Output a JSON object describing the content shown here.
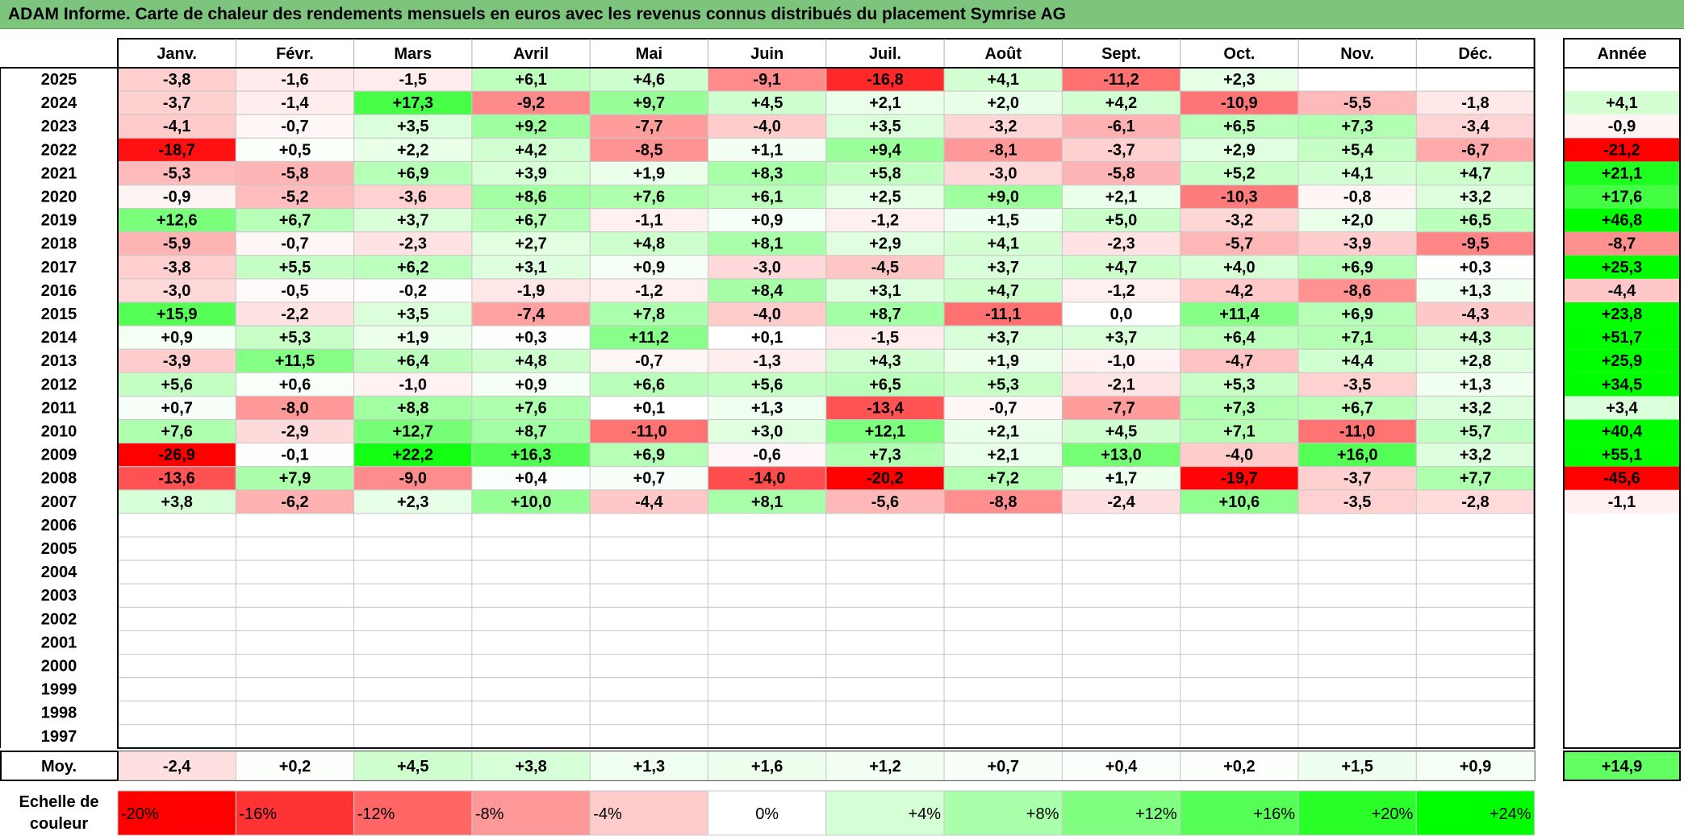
{
  "title": "ADAM Informe. Carte de chaleur des rendements mensuels en euros avec les revenus connus distribués du placement Symrise AG",
  "chart_data": {
    "type": "heatmap",
    "months": [
      "Janv.",
      "Févr.",
      "Mars",
      "Avril",
      "Mai",
      "Juin",
      "Juil.",
      "Août",
      "Sept.",
      "Oct.",
      "Nov.",
      "Déc."
    ],
    "year_header": "Année",
    "years": [
      "2025",
      "2024",
      "2023",
      "2022",
      "2021",
      "2020",
      "2019",
      "2018",
      "2017",
      "2016",
      "2015",
      "2014",
      "2013",
      "2012",
      "2011",
      "2010",
      "2009",
      "2008",
      "2007",
      "2006",
      "2005",
      "2004",
      "2003",
      "2002",
      "2001",
      "2000",
      "1999",
      "1998",
      "1997"
    ],
    "values": [
      [
        "-3,8",
        "-1,6",
        "-1,5",
        "+6,1",
        "+4,6",
        "-9,1",
        "-16,8",
        "+4,1",
        "-11,2",
        "+2,3",
        "",
        ""
      ],
      [
        "-3,7",
        "-1,4",
        "+17,3",
        "-9,2",
        "+9,7",
        "+4,5",
        "+2,1",
        "+2,0",
        "+4,2",
        "-10,9",
        "-5,5",
        "-1,8"
      ],
      [
        "-4,1",
        "-0,7",
        "+3,5",
        "+9,2",
        "-7,7",
        "-4,0",
        "+3,5",
        "-3,2",
        "-6,1",
        "+6,5",
        "+7,3",
        "-3,4"
      ],
      [
        "-18,7",
        "+0,5",
        "+2,2",
        "+4,2",
        "-8,5",
        "+1,1",
        "+9,4",
        "-8,1",
        "-3,7",
        "+2,9",
        "+5,4",
        "-6,7"
      ],
      [
        "-5,3",
        "-5,8",
        "+6,9",
        "+3,9",
        "+1,9",
        "+8,3",
        "+5,8",
        "-3,0",
        "-5,8",
        "+5,2",
        "+4,1",
        "+4,7"
      ],
      [
        "-0,9",
        "-5,2",
        "-3,6",
        "+8,6",
        "+7,6",
        "+6,1",
        "+2,5",
        "+9,0",
        "+2,1",
        "-10,3",
        "-0,8",
        "+3,2"
      ],
      [
        "+12,6",
        "+6,7",
        "+3,7",
        "+6,7",
        "-1,1",
        "+0,9",
        "-1,2",
        "+1,5",
        "+5,0",
        "-3,2",
        "+2,0",
        "+6,5"
      ],
      [
        "-5,9",
        "-0,7",
        "-2,3",
        "+2,7",
        "+4,8",
        "+8,1",
        "+2,9",
        "+4,1",
        "-2,3",
        "-5,7",
        "-3,9",
        "-9,5"
      ],
      [
        "-3,8",
        "+5,5",
        "+6,2",
        "+3,1",
        "+0,9",
        "-3,0",
        "-4,5",
        "+3,7",
        "+4,7",
        "+4,0",
        "+6,9",
        "+0,3"
      ],
      [
        "-3,0",
        "-0,5",
        "-0,2",
        "-1,9",
        "-1,2",
        "+8,4",
        "+3,1",
        "+4,7",
        "-1,2",
        "-4,2",
        "-8,6",
        "+1,3"
      ],
      [
        "+15,9",
        "-2,2",
        "+3,5",
        "-7,4",
        "+7,8",
        "-4,0",
        "+8,7",
        "-11,1",
        "0,0",
        "+11,4",
        "+6,9",
        "-4,3"
      ],
      [
        "+0,9",
        "+5,3",
        "+1,9",
        "+0,3",
        "+11,2",
        "+0,1",
        "-1,5",
        "+3,7",
        "+3,7",
        "+6,4",
        "+7,1",
        "+4,3"
      ],
      [
        "-3,9",
        "+11,5",
        "+6,4",
        "+4,8",
        "-0,7",
        "-1,3",
        "+4,3",
        "+1,9",
        "-1,0",
        "-4,7",
        "+4,4",
        "+2,8"
      ],
      [
        "+5,6",
        "+0,6",
        "-1,0",
        "+0,9",
        "+6,6",
        "+5,6",
        "+6,5",
        "+5,3",
        "-2,1",
        "+5,3",
        "-3,5",
        "+1,3"
      ],
      [
        "+0,7",
        "-8,0",
        "+8,8",
        "+7,6",
        "+0,1",
        "+1,3",
        "-13,4",
        "-0,7",
        "-7,7",
        "+7,3",
        "+6,7",
        "+3,2"
      ],
      [
        "+7,6",
        "-2,9",
        "+12,7",
        "+8,7",
        "-11,0",
        "+3,0",
        "+12,1",
        "+2,1",
        "+4,5",
        "+7,1",
        "-11,0",
        "+5,7"
      ],
      [
        "-26,9",
        "-0,1",
        "+22,2",
        "+16,3",
        "+6,9",
        "-0,6",
        "+7,3",
        "+2,1",
        "+13,0",
        "-4,0",
        "+16,0",
        "+3,2"
      ],
      [
        "-13,6",
        "+7,9",
        "-9,0",
        "+0,4",
        "+0,7",
        "-14,0",
        "-20,2",
        "+7,2",
        "+1,7",
        "-19,7",
        "-3,7",
        "+7,7"
      ],
      [
        "+3,8",
        "-6,2",
        "+2,3",
        "+10,0",
        "-4,4",
        "+8,1",
        "-5,6",
        "-8,8",
        "-2,4",
        "+10,6",
        "-3,5",
        "-2,8"
      ],
      [
        "",
        "",
        "",
        "",
        "",
        "",
        "",
        "",
        "",
        "",
        "",
        ""
      ],
      [
        "",
        "",
        "",
        "",
        "",
        "",
        "",
        "",
        "",
        "",
        "",
        ""
      ],
      [
        "",
        "",
        "",
        "",
        "",
        "",
        "",
        "",
        "",
        "",
        "",
        ""
      ],
      [
        "",
        "",
        "",
        "",
        "",
        "",
        "",
        "",
        "",
        "",
        "",
        ""
      ],
      [
        "",
        "",
        "",
        "",
        "",
        "",
        "",
        "",
        "",
        "",
        "",
        ""
      ],
      [
        "",
        "",
        "",
        "",
        "",
        "",
        "",
        "",
        "",
        "",
        "",
        ""
      ],
      [
        "",
        "",
        "",
        "",
        "",
        "",
        "",
        "",
        "",
        "",
        "",
        ""
      ],
      [
        "",
        "",
        "",
        "",
        "",
        "",
        "",
        "",
        "",
        "",
        "",
        ""
      ],
      [
        "",
        "",
        "",
        "",
        "",
        "",
        "",
        "",
        "",
        "",
        "",
        ""
      ],
      [
        "",
        "",
        "",
        "",
        "",
        "",
        "",
        "",
        "",
        "",
        "",
        ""
      ]
    ],
    "annual": [
      "",
      "+4,1",
      "-0,9",
      "-21,2",
      "+21,1",
      "+17,6",
      "+46,8",
      "-8,7",
      "+25,3",
      "-4,4",
      "+23,8",
      "+51,7",
      "+25,9",
      "+34,5",
      "+3,4",
      "+40,4",
      "+55,1",
      "-45,6",
      "-1,1",
      "",
      "",
      "",
      "",
      "",
      "",
      "",
      "",
      "",
      ""
    ],
    "avg_label": "Moy.",
    "avg_values": [
      "-2,4",
      "+0,2",
      "+4,5",
      "+3,8",
      "+1,3",
      "+1,6",
      "+1,2",
      "+0,7",
      "+0,4",
      "+0,2",
      "+1,5",
      "+0,9"
    ],
    "avg_annual": "+14,9",
    "scale_label_line1": "Echelle de",
    "scale_label_line2": "couleur",
    "scale": [
      {
        "label": "-20%",
        "value": -20,
        "color": "#ff0000"
      },
      {
        "label": "-16%",
        "value": -16,
        "color": "#ff3333"
      },
      {
        "label": "-12%",
        "value": -12,
        "color": "#ff6666"
      },
      {
        "label": "-8%",
        "value": -8,
        "color": "#ff9999"
      },
      {
        "label": "-4%",
        "value": -4,
        "color": "#ffcccc"
      },
      {
        "label": "0%",
        "value": 0,
        "color": "#ffffff"
      },
      {
        "label": "+4%",
        "value": 4,
        "color": "#d6ffd6"
      },
      {
        "label": "+8%",
        "value": 8,
        "color": "#adffad"
      },
      {
        "label": "+12%",
        "value": 12,
        "color": "#85ff85"
      },
      {
        "label": "+16%",
        "value": 16,
        "color": "#5cff5c"
      },
      {
        "label": "+20%",
        "value": 20,
        "color": "#33ff33"
      },
      {
        "label": "+24%",
        "value": 24,
        "color": "#00ff00"
      }
    ]
  }
}
